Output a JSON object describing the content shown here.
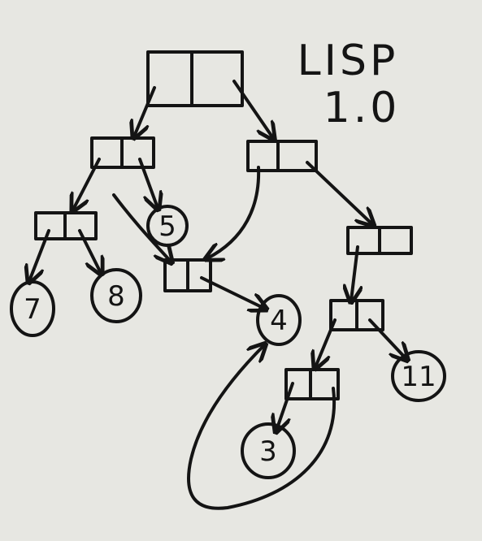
{
  "title": {
    "line1": "LISP",
    "line2": "1.0"
  },
  "atoms": {
    "seven": "7",
    "eight": "8",
    "five": "5",
    "four": "4",
    "three": "3",
    "eleven": "11"
  },
  "colors": {
    "ink": "#141414",
    "paper": "#e7e7e2"
  }
}
